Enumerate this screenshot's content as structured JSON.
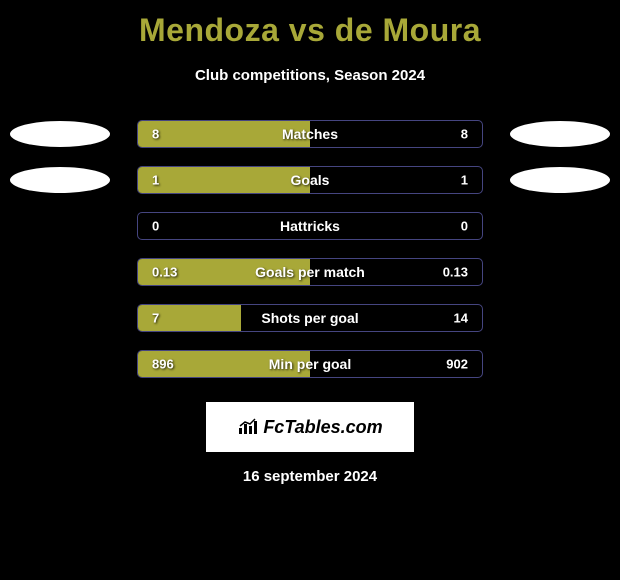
{
  "title": "Mendoza vs de Moura",
  "subtitle": "Club competitions, Season 2024",
  "date": "16 september 2024",
  "logo": "FcTables.com",
  "colors": {
    "bar_fill": "#a8a838",
    "bar_border": "#454580",
    "background": "#000000",
    "ellipse": "#ffffff",
    "title_color": "#a8a838"
  },
  "stats": [
    {
      "label": "Matches",
      "value_left": "8",
      "value_right": "8",
      "fill_left_pct": 50,
      "fill_right_pct": 0,
      "show_ellipse_left": true,
      "show_ellipse_right": true
    },
    {
      "label": "Goals",
      "value_left": "1",
      "value_right": "1",
      "fill_left_pct": 50,
      "fill_right_pct": 0,
      "show_ellipse_left": true,
      "show_ellipse_right": true
    },
    {
      "label": "Hattricks",
      "value_left": "0",
      "value_right": "0",
      "fill_left_pct": 0,
      "fill_right_pct": 0,
      "show_ellipse_left": false,
      "show_ellipse_right": false
    },
    {
      "label": "Goals per match",
      "value_left": "0.13",
      "value_right": "0.13",
      "fill_left_pct": 50,
      "fill_right_pct": 0,
      "show_ellipse_left": false,
      "show_ellipse_right": false
    },
    {
      "label": "Shots per goal",
      "value_left": "7",
      "value_right": "14",
      "fill_left_pct": 30,
      "fill_right_pct": 0,
      "show_ellipse_left": false,
      "show_ellipse_right": false
    },
    {
      "label": "Min per goal",
      "value_left": "896",
      "value_right": "902",
      "fill_left_pct": 50,
      "fill_right_pct": 0,
      "show_ellipse_left": false,
      "show_ellipse_right": false
    }
  ]
}
